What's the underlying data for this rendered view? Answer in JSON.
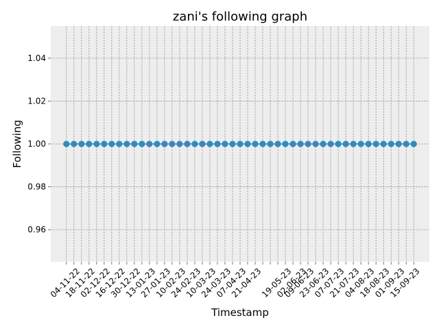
{
  "chart_data": {
    "type": "line",
    "title": "zani's following graph",
    "xlabel": "Timestamp",
    "ylabel": "Following",
    "ylim": [
      0.945,
      1.055
    ],
    "yticks": [
      0.96,
      0.98,
      1.0,
      1.02,
      1.04
    ],
    "ytick_labels": [
      "0.96",
      "0.98",
      "1.00",
      "1.02",
      "1.04"
    ],
    "xtick_labels": [
      "04-11-22",
      "18-11-22",
      "02-12-22",
      "16-12-22",
      "30-12-22",
      "13-01-23",
      "27-01-23",
      "10-02-23",
      "24-02-23",
      "10-03-23",
      "24-03-23",
      "07-04-23",
      "21-04-23",
      "19-05-23",
      "02-06-23",
      "09-06-23",
      "23-06-23",
      "07-07-23",
      "21-07-23",
      "04-08-23",
      "18-08-23",
      "01-09-23",
      "15-09-23"
    ],
    "x": [
      "2022-10-28",
      "2022-11-04",
      "2022-11-11",
      "2022-11-18",
      "2022-11-25",
      "2022-12-02",
      "2022-12-09",
      "2022-12-16",
      "2022-12-23",
      "2022-12-30",
      "2023-01-06",
      "2023-01-13",
      "2023-01-20",
      "2023-01-27",
      "2023-02-03",
      "2023-02-10",
      "2023-02-17",
      "2023-02-24",
      "2023-03-03",
      "2023-03-10",
      "2023-03-17",
      "2023-03-24",
      "2023-03-31",
      "2023-04-07",
      "2023-04-14",
      "2023-04-21",
      "2023-04-28",
      "2023-05-05",
      "2023-05-12",
      "2023-05-19",
      "2023-05-26",
      "2023-06-02",
      "2023-06-09",
      "2023-06-16",
      "2023-06-23",
      "2023-06-30",
      "2023-07-07",
      "2023-07-14",
      "2023-07-21",
      "2023-07-28",
      "2023-08-04",
      "2023-08-11",
      "2023-08-18",
      "2023-08-25",
      "2023-09-01",
      "2023-09-08",
      "2023-09-15"
    ],
    "series": [
      {
        "values": [
          1,
          1,
          1,
          1,
          1,
          1,
          1,
          1,
          1,
          1,
          1,
          1,
          1,
          1,
          1,
          1,
          1,
          1,
          1,
          1,
          1,
          1,
          1,
          1,
          1,
          1,
          1,
          1,
          1,
          1,
          1,
          1,
          1,
          1,
          1,
          1,
          1,
          1,
          1,
          1,
          1,
          1,
          1,
          1,
          1,
          1,
          1
        ],
        "color": "#348abd"
      }
    ],
    "grid": true,
    "legend": "none",
    "background_color": "#eeeeee",
    "grid_color": "#999999"
  }
}
